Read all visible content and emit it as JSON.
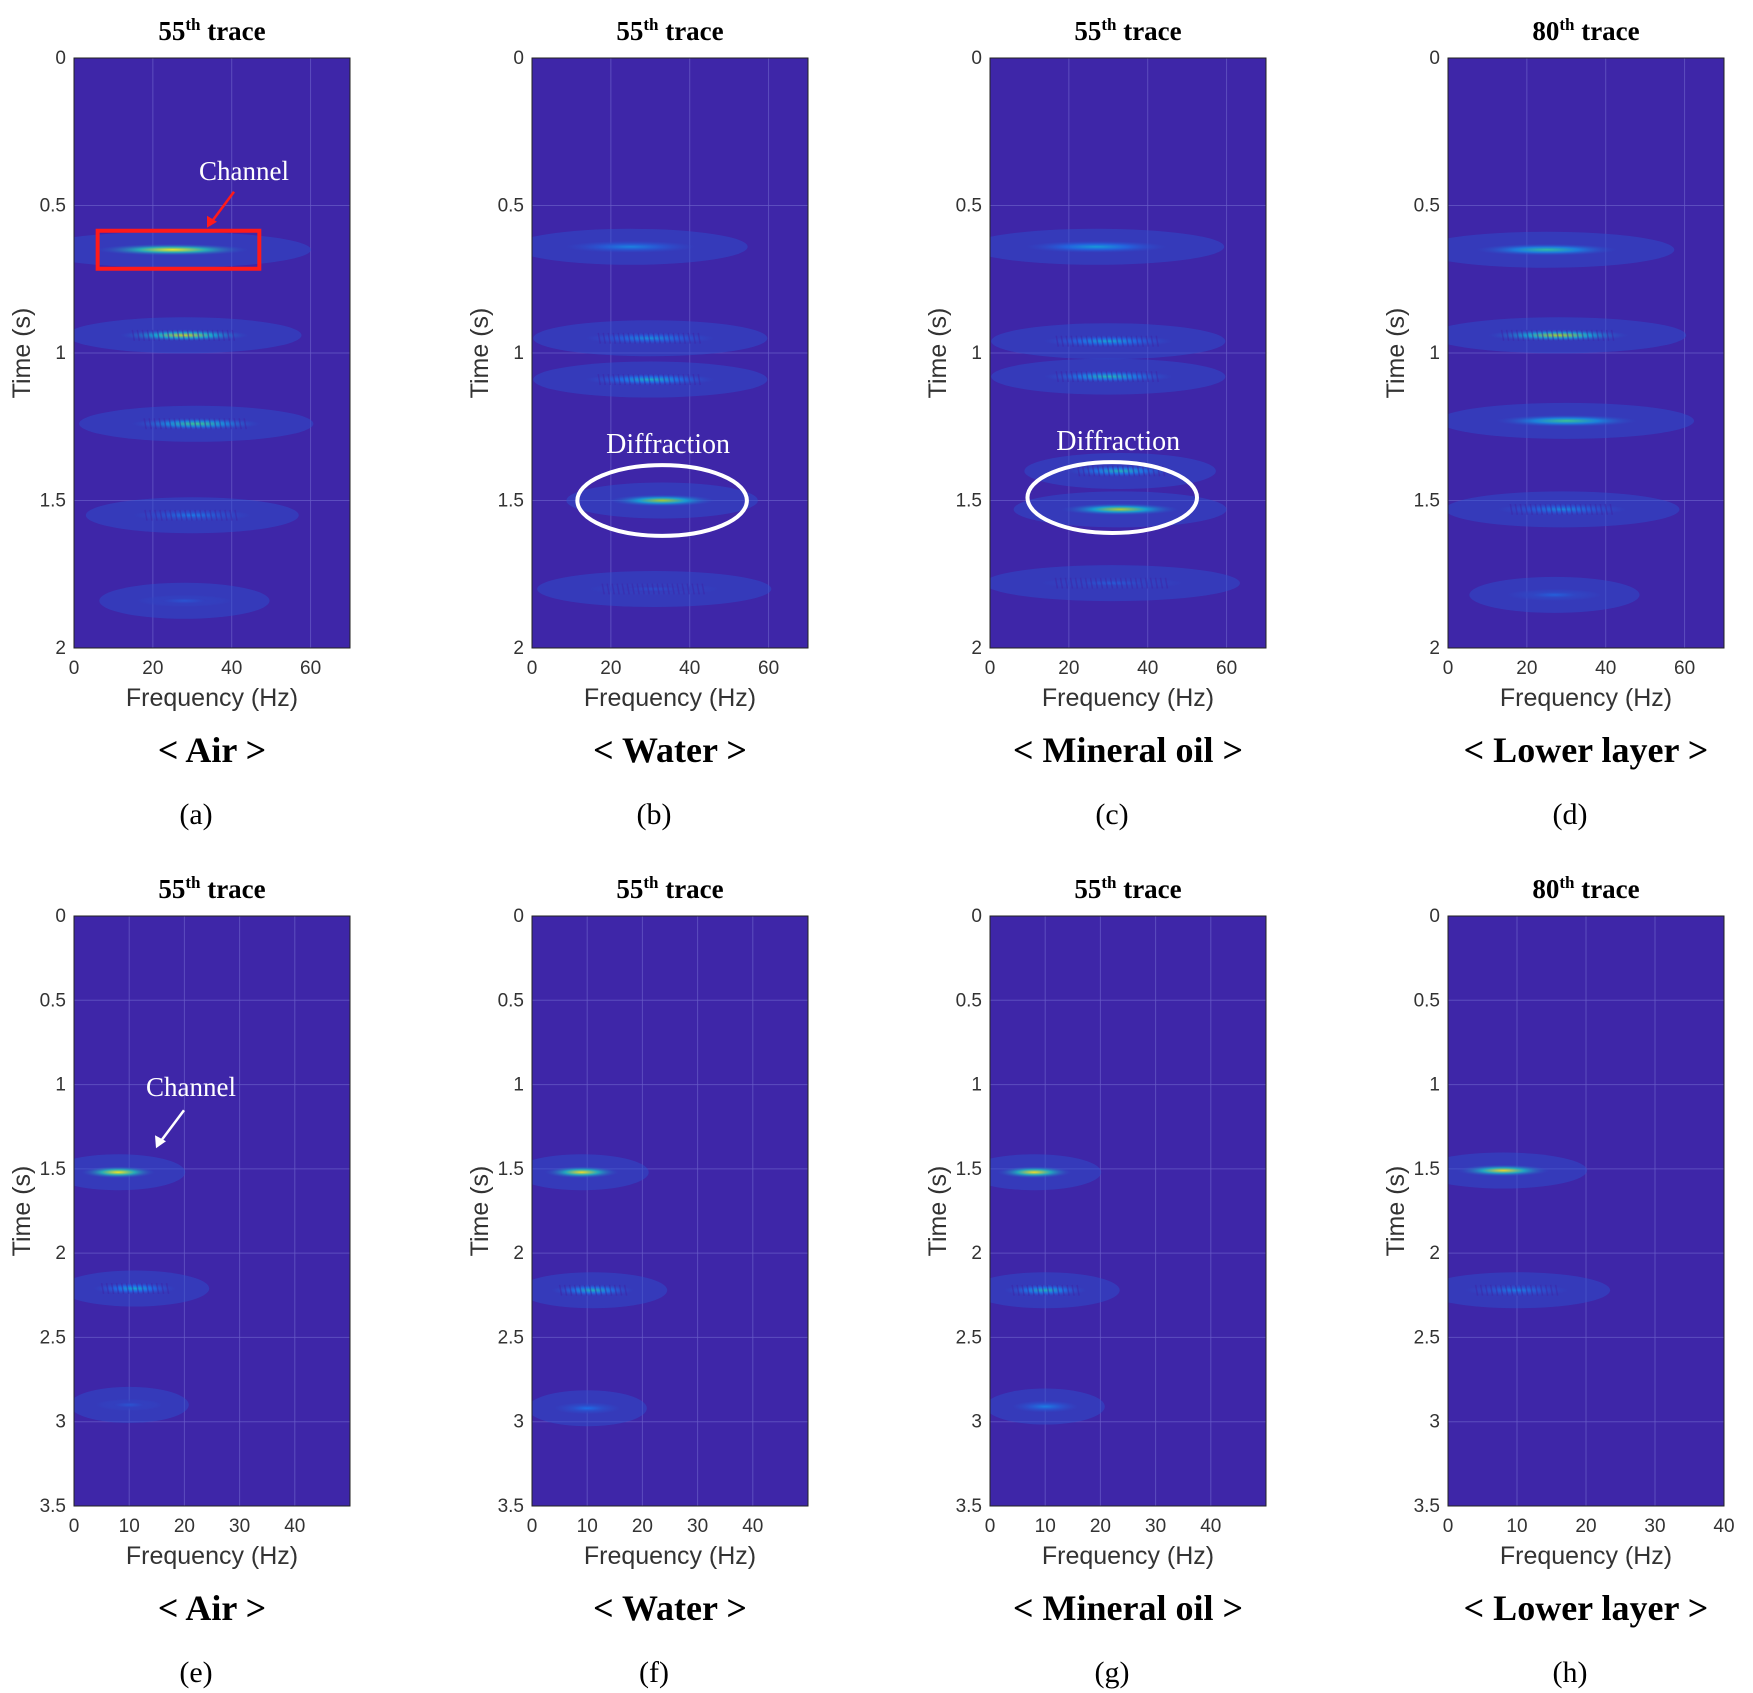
{
  "colors": {
    "background": "#3e26a8",
    "grid": "#6a5ec8",
    "channel_box": "#ff1a1a",
    "ellipse": "#ffffff",
    "annotation_text": "#ffffff"
  },
  "colormap": "parula",
  "chart_data": [
    {
      "type": "heatmap",
      "panel_label": "(a)",
      "title_num": "55",
      "title_sup": "th",
      "title_rest": " trace",
      "xlabel": "Frequency (Hz)",
      "ylabel": "Time (s)",
      "xlim": [
        0,
        70
      ],
      "ylim": [
        0,
        2
      ],
      "xticks": [
        "0",
        "20",
        "40",
        "60"
      ],
      "yticks": [
        "0",
        "0.5",
        "1",
        "1.5",
        "2"
      ],
      "caption": "< Air >",
      "events": [
        {
          "t": 0.65,
          "f_center": 25,
          "f_width": 13,
          "intensity": 0.95,
          "striped": false
        },
        {
          "t": 0.94,
          "f_center": 28,
          "f_width": 11,
          "intensity": 0.82,
          "striped": true
        },
        {
          "t": 1.24,
          "f_center": 31,
          "f_width": 11,
          "intensity": 0.62,
          "striped": true
        },
        {
          "t": 1.55,
          "f_center": 30,
          "f_width": 10,
          "intensity": 0.28,
          "striped": true
        },
        {
          "t": 1.84,
          "f_center": 28,
          "f_width": 8,
          "intensity": 0.16,
          "striped": false
        }
      ],
      "annotations": [
        {
          "kind": "box",
          "text": "Channel",
          "t": 0.65,
          "f_min": 6,
          "f_max": 47
        }
      ]
    },
    {
      "type": "heatmap",
      "panel_label": "(b)",
      "title_num": "55",
      "title_sup": "th",
      "title_rest": " trace",
      "xlabel": "Frequency (Hz)",
      "ylabel": "Time (s)",
      "xlim": [
        0,
        70
      ],
      "ylim": [
        0,
        2
      ],
      "xticks": [
        "0",
        "20",
        "40",
        "60"
      ],
      "yticks": [
        "0",
        "0.5",
        "1",
        "1.5",
        "2"
      ],
      "caption": "< Water >",
      "events": [
        {
          "t": 0.64,
          "f_center": 25,
          "f_width": 11,
          "intensity": 0.32,
          "striped": false
        },
        {
          "t": 0.95,
          "f_center": 30,
          "f_width": 11,
          "intensity": 0.36,
          "striped": true
        },
        {
          "t": 1.09,
          "f_center": 30,
          "f_width": 11,
          "intensity": 0.48,
          "striped": true
        },
        {
          "t": 1.5,
          "f_center": 33,
          "f_width": 9,
          "intensity": 0.78,
          "striped": false
        },
        {
          "t": 1.8,
          "f_center": 31,
          "f_width": 11,
          "intensity": 0.14,
          "striped": true
        }
      ],
      "annotations": [
        {
          "kind": "ellipse",
          "text": "Diffraction",
          "t": 1.5,
          "f_center": 33,
          "f_radius": 21.5,
          "t_radius": 0.12
        }
      ]
    },
    {
      "type": "heatmap",
      "panel_label": "(c)",
      "title_num": "55",
      "title_sup": "th",
      "title_rest": " trace",
      "xlabel": "Frequency (Hz)",
      "ylabel": "Time (s)",
      "xlim": [
        0,
        70
      ],
      "ylim": [
        0,
        2
      ],
      "xticks": [
        "0",
        "20",
        "40",
        "60"
      ],
      "yticks": [
        "0",
        "0.5",
        "1",
        "1.5",
        "2"
      ],
      "caption": "< Mineral oil >",
      "events": [
        {
          "t": 0.64,
          "f_center": 27,
          "f_width": 12,
          "intensity": 0.4,
          "striped": false
        },
        {
          "t": 0.96,
          "f_center": 30,
          "f_width": 11,
          "intensity": 0.42,
          "striped": true
        },
        {
          "t": 1.08,
          "f_center": 30,
          "f_width": 11,
          "intensity": 0.52,
          "striped": true
        },
        {
          "t": 1.4,
          "f_center": 33,
          "f_width": 9,
          "intensity": 0.5,
          "striped": true
        },
        {
          "t": 1.53,
          "f_center": 33,
          "f_width": 10,
          "intensity": 0.8,
          "striped": false
        },
        {
          "t": 1.78,
          "f_center": 31,
          "f_width": 12,
          "intensity": 0.18,
          "striped": true
        }
      ],
      "annotations": [
        {
          "kind": "ellipse",
          "text": "Diffraction",
          "t": 1.49,
          "f_center": 31,
          "f_radius": 21.5,
          "t_radius": 0.12
        }
      ]
    },
    {
      "type": "heatmap",
      "panel_label": "(d)",
      "title_num": "80",
      "title_sup": "th",
      "title_rest": " trace",
      "xlabel": "Frequency (Hz)",
      "ylabel": "Time (s)",
      "xlim": [
        0,
        70
      ],
      "ylim": [
        0,
        2
      ],
      "xticks": [
        "0",
        "20",
        "40",
        "60"
      ],
      "yticks": [
        "0",
        "0.5",
        "1",
        "1.5",
        "2"
      ],
      "caption": "< Lower layer >",
      "events": [
        {
          "t": 0.65,
          "f_center": 25,
          "f_width": 12,
          "intensity": 0.58,
          "striped": false
        },
        {
          "t": 0.94,
          "f_center": 28,
          "f_width": 12,
          "intensity": 0.78,
          "striped": true
        },
        {
          "t": 1.23,
          "f_center": 30,
          "f_width": 12,
          "intensity": 0.62,
          "striped": false
        },
        {
          "t": 1.53,
          "f_center": 29,
          "f_width": 11,
          "intensity": 0.34,
          "striped": true
        },
        {
          "t": 1.82,
          "f_center": 27,
          "f_width": 8,
          "intensity": 0.2,
          "striped": false
        }
      ],
      "annotations": []
    },
    {
      "type": "heatmap",
      "panel_label": "(e)",
      "title_num": "55",
      "title_sup": "th",
      "title_rest": " trace",
      "xlabel": "Frequency (Hz)",
      "ylabel": "Time (s)",
      "xlim": [
        0,
        50
      ],
      "ylim": [
        0,
        3.5
      ],
      "xticks": [
        "0",
        "10",
        "20",
        "30",
        "40"
      ],
      "yticks": [
        "0",
        "0.5",
        "1",
        "1.5",
        "2",
        "2.5",
        "3",
        "3.5"
      ],
      "caption": "< Air >",
      "events": [
        {
          "t": 1.52,
          "f_center": 8,
          "f_width": 4.5,
          "intensity": 0.95,
          "striped": false
        },
        {
          "t": 2.21,
          "f_center": 11,
          "f_width": 5,
          "intensity": 0.45,
          "striped": true
        },
        {
          "t": 2.9,
          "f_center": 10,
          "f_width": 4,
          "intensity": 0.16,
          "striped": false
        }
      ],
      "annotations": [
        {
          "kind": "arrow",
          "text": "Channel",
          "t": 1.52
        }
      ]
    },
    {
      "type": "heatmap",
      "panel_label": "(f)",
      "title_num": "55",
      "title_sup": "th",
      "title_rest": " trace",
      "xlabel": "Frequency (Hz)",
      "ylabel": "Time (s)",
      "xlim": [
        0,
        50
      ],
      "ylim": [
        0,
        3.5
      ],
      "xticks": [
        "0",
        "10",
        "20",
        "30",
        "40"
      ],
      "yticks": [
        "0",
        "0.5",
        "1",
        "1.5",
        "2",
        "2.5",
        "3",
        "3.5"
      ],
      "caption": "< Water >",
      "events": [
        {
          "t": 1.52,
          "f_center": 9,
          "f_width": 4.5,
          "intensity": 0.92,
          "striped": false
        },
        {
          "t": 2.22,
          "f_center": 11,
          "f_width": 5,
          "intensity": 0.5,
          "striped": true
        },
        {
          "t": 2.92,
          "f_center": 10,
          "f_width": 4,
          "intensity": 0.25,
          "striped": false
        }
      ],
      "annotations": []
    },
    {
      "type": "heatmap",
      "panel_label": "(g)",
      "title_num": "55",
      "title_sup": "th",
      "title_rest": " trace",
      "xlabel": "Frequency (Hz)",
      "ylabel": "Time (s)",
      "xlim": [
        0,
        50
      ],
      "ylim": [
        0,
        3.5
      ],
      "xticks": [
        "0",
        "10",
        "20",
        "30",
        "40"
      ],
      "yticks": [
        "0",
        "0.5",
        "1",
        "1.5",
        "2",
        "2.5",
        "3",
        "3.5"
      ],
      "caption": "< Mineral oil >",
      "events": [
        {
          "t": 1.52,
          "f_center": 8,
          "f_width": 4.5,
          "intensity": 0.92,
          "striped": false
        },
        {
          "t": 2.22,
          "f_center": 10,
          "f_width": 5,
          "intensity": 0.5,
          "striped": true
        },
        {
          "t": 2.91,
          "f_center": 10,
          "f_width": 4,
          "intensity": 0.3,
          "striped": false
        }
      ],
      "annotations": []
    },
    {
      "type": "heatmap",
      "panel_label": "(h)",
      "title_num": "80",
      "title_sup": "th",
      "title_rest": " trace",
      "xlabel": "Frequency (Hz)",
      "ylabel": "Time (s)",
      "xlim": [
        0,
        40
      ],
      "ylim": [
        0,
        3.5
      ],
      "xticks": [
        "0",
        "10",
        "20",
        "30",
        "40"
      ],
      "yticks": [
        "0",
        "0.5",
        "1",
        "1.5",
        "2",
        "2.5",
        "3",
        "3.5"
      ],
      "caption": "< Lower layer >",
      "events": [
        {
          "t": 1.51,
          "f_center": 8,
          "f_width": 4.5,
          "intensity": 0.9,
          "striped": false
        },
        {
          "t": 2.22,
          "f_center": 10,
          "f_width": 5,
          "intensity": 0.3,
          "striped": true
        }
      ],
      "annotations": []
    }
  ]
}
